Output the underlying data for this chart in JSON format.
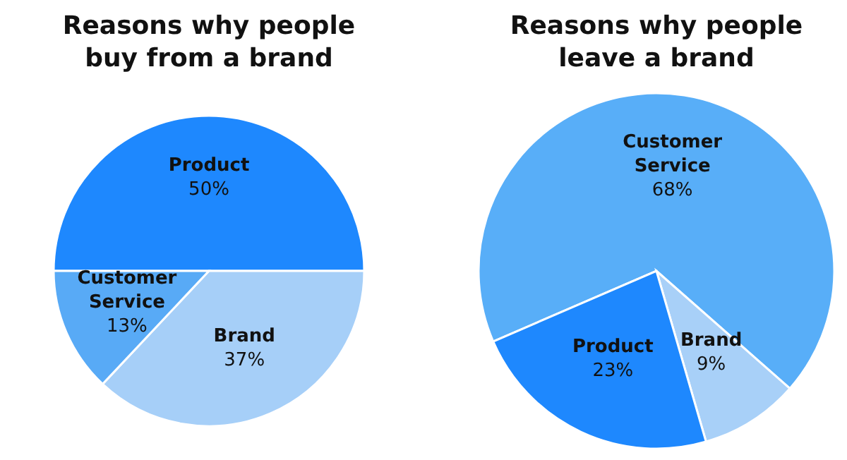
{
  "chart_data": [
    {
      "type": "pie",
      "title": "Reasons why people buy from a brand",
      "categories": [
        "Product",
        "Brand",
        "Customer Service"
      ],
      "values": [
        50,
        37,
        13
      ],
      "colors": [
        "#1e88fe",
        "#a6cff8",
        "#58aaf6"
      ],
      "value_labels": [
        "50%",
        "37%",
        "13%"
      ]
    },
    {
      "type": "pie",
      "title": "Reasons why people leave a brand",
      "categories": [
        "Customer Service",
        "Brand",
        "Product"
      ],
      "values": [
        68,
        9,
        23
      ],
      "colors": [
        "#58aef8",
        "#a8d0f8",
        "#1e88fe"
      ],
      "value_labels": [
        "68%",
        "9%",
        "23%"
      ]
    }
  ]
}
